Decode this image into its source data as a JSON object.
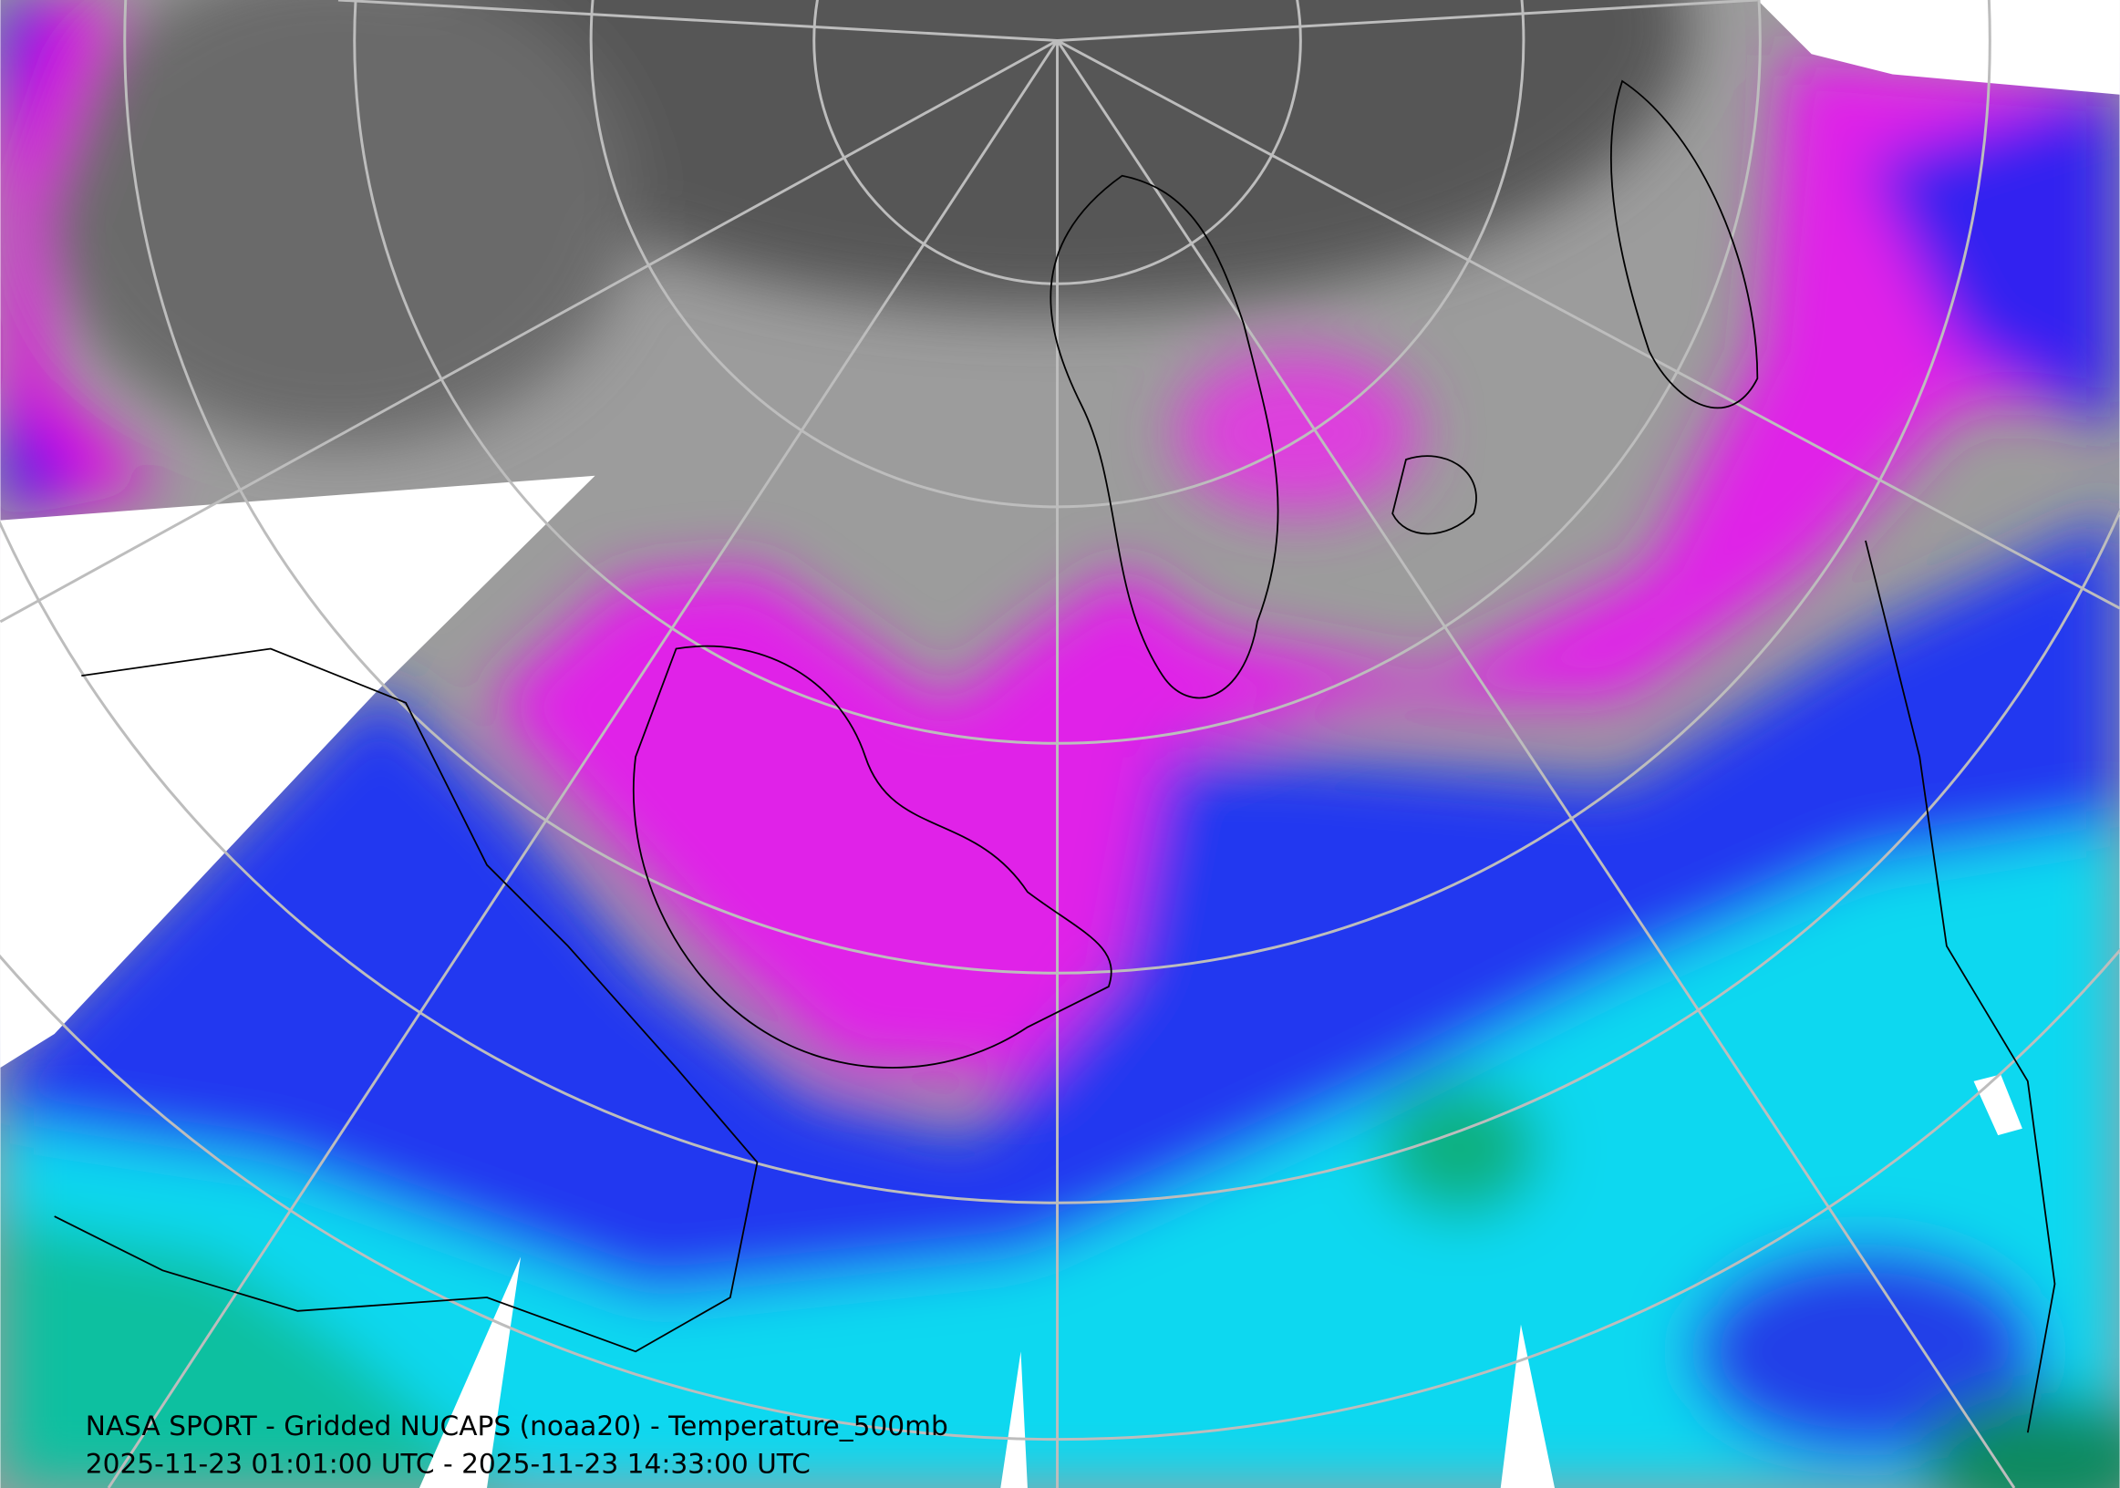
{
  "caption": {
    "title": "NASA SPORT - Gridded NUCAPS (noaa20) - Temperature_500mb",
    "time_range": "2025-11-23 01:01:00 UTC - 2025-11-23 14:33:00 UTC"
  }
}
